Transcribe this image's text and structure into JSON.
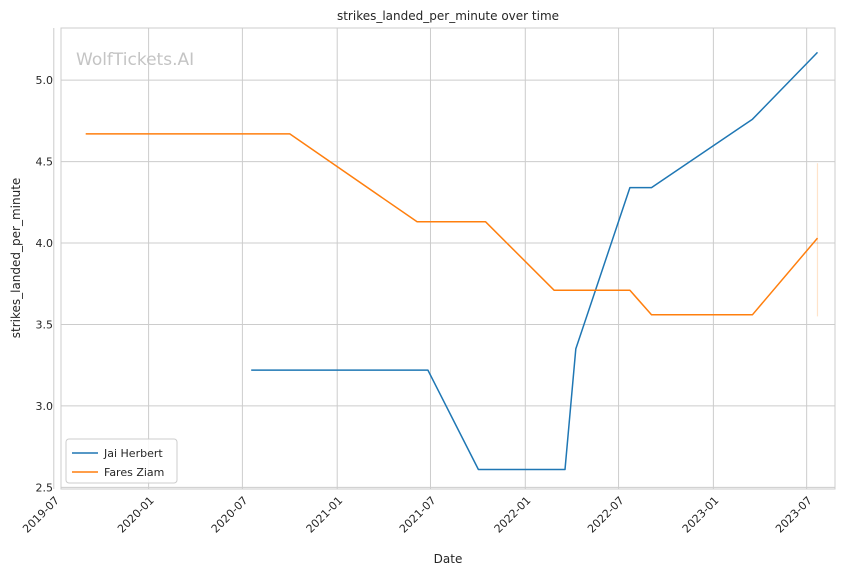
{
  "chart_data": {
    "type": "line",
    "title": "strikes_landed_per_minute over time",
    "xlabel": "Date",
    "ylabel": "strikes_landed_per_minute",
    "watermark": "WolfTickets.AI",
    "xlim": [
      "2019-07-15",
      "2023-08-25"
    ],
    "ylim": [
      2.49,
      5.32
    ],
    "x_ticks": [
      "2019-07",
      "2020-01",
      "2020-07",
      "2021-01",
      "2021-07",
      "2022-01",
      "2022-07",
      "2023-01",
      "2023-07"
    ],
    "y_ticks": [
      "2.5",
      "3.0",
      "3.5",
      "4.0",
      "4.5",
      "5.0"
    ],
    "grid": true,
    "legend_position": "lower-left",
    "series": [
      {
        "name": "Jai Herbert",
        "color": "#1f77b4",
        "points": [
          {
            "x": "2020-07-18",
            "y": 3.22
          },
          {
            "x": "2021-06-26",
            "y": 3.22
          },
          {
            "x": "2021-10-02",
            "y": 2.61
          },
          {
            "x": "2022-03-19",
            "y": 2.61
          },
          {
            "x": "2022-04-09",
            "y": 3.35
          },
          {
            "x": "2022-07-23",
            "y": 4.34
          },
          {
            "x": "2022-09-03",
            "y": 4.34
          },
          {
            "x": "2023-03-18",
            "y": 4.76
          },
          {
            "x": "2023-07-22",
            "y": 5.17
          }
        ]
      },
      {
        "name": "Fares Ziam",
        "color": "#ff7f0e",
        "points": [
          {
            "x": "2019-09-01",
            "y": 4.67
          },
          {
            "x": "2020-10-01",
            "y": 4.67
          },
          {
            "x": "2021-06-05",
            "y": 4.13
          },
          {
            "x": "2021-10-16",
            "y": 4.13
          },
          {
            "x": "2022-02-26",
            "y": 3.71
          },
          {
            "x": "2022-07-23",
            "y": 3.71
          },
          {
            "x": "2022-09-03",
            "y": 3.56
          },
          {
            "x": "2023-03-18",
            "y": 3.56
          },
          {
            "x": "2023-07-22",
            "y": 4.03
          }
        ],
        "spread": {
          "x": "2023-07-22",
          "low": 3.55,
          "high": 4.49
        }
      }
    ]
  }
}
